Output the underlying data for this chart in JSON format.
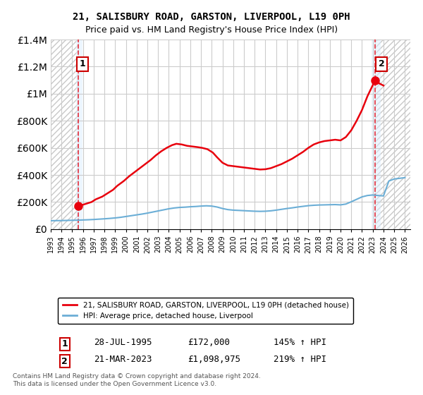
{
  "title": "21, SALISBURY ROAD, GARSTON, LIVERPOOL, L19 0PH",
  "subtitle": "Price paid vs. HM Land Registry's House Price Index (HPI)",
  "legend_label1": "21, SALISBURY ROAD, GARSTON, LIVERPOOL, L19 0PH (detached house)",
  "legend_label2": "HPI: Average price, detached house, Liverpool",
  "annotation1_label": "1",
  "annotation1_date": "28-JUL-1995",
  "annotation1_price": "£172,000",
  "annotation1_hpi": "145% ↑ HPI",
  "annotation2_label": "2",
  "annotation2_date": "21-MAR-2023",
  "annotation2_price": "£1,098,975",
  "annotation2_hpi": "219% ↑ HPI",
  "footer": "Contains HM Land Registry data © Crown copyright and database right 2024.\nThis data is licensed under the Open Government Licence v3.0.",
  "house_color": "#e8000d",
  "hpi_color": "#6baed6",
  "hatch_color": "#d0d0d0",
  "grid_color": "#cccccc",
  "ylim": [
    0,
    1400000
  ],
  "xlim_start": 1993.0,
  "xlim_end": 2026.5,
  "purchase1_x": 1995.57,
  "purchase1_y": 172000,
  "purchase2_x": 2023.22,
  "purchase2_y": 1098975,
  "house_prices_x": [
    1995.57,
    1995.8,
    1996.2,
    1996.8,
    1997.2,
    1997.8,
    1998.3,
    1998.8,
    1999.2,
    1999.8,
    2000.3,
    2000.8,
    2001.3,
    2001.8,
    2002.3,
    2002.8,
    2003.3,
    2003.8,
    2004.3,
    2004.7,
    2005.2,
    2005.7,
    2006.2,
    2006.7,
    2007.1,
    2007.6,
    2008.1,
    2008.5,
    2009.0,
    2009.5,
    2010.0,
    2010.5,
    2011.0,
    2011.5,
    2012.0,
    2012.5,
    2013.0,
    2013.5,
    2014.0,
    2014.5,
    2015.0,
    2015.5,
    2016.0,
    2016.5,
    2017.0,
    2017.5,
    2018.0,
    2018.5,
    2019.0,
    2019.5,
    2020.0,
    2020.5,
    2021.0,
    2021.5,
    2022.0,
    2022.5,
    2023.22,
    2023.5,
    2024.0
  ],
  "house_prices_y": [
    172000,
    175000,
    185000,
    200000,
    220000,
    240000,
    265000,
    290000,
    320000,
    355000,
    390000,
    420000,
    450000,
    480000,
    510000,
    545000,
    575000,
    600000,
    620000,
    630000,
    625000,
    615000,
    610000,
    605000,
    600000,
    590000,
    565000,
    530000,
    490000,
    470000,
    465000,
    460000,
    455000,
    450000,
    445000,
    440000,
    442000,
    450000,
    465000,
    480000,
    500000,
    520000,
    545000,
    570000,
    600000,
    625000,
    640000,
    650000,
    655000,
    660000,
    655000,
    680000,
    730000,
    800000,
    880000,
    980000,
    1098975,
    1080000,
    1060000
  ],
  "hpi_x": [
    1993.0,
    1993.5,
    1994.0,
    1994.5,
    1995.0,
    1995.5,
    1996.0,
    1996.5,
    1997.0,
    1997.5,
    1998.0,
    1998.5,
    1999.0,
    1999.5,
    2000.0,
    2000.5,
    2001.0,
    2001.5,
    2002.0,
    2002.5,
    2003.0,
    2003.5,
    2004.0,
    2004.5,
    2005.0,
    2005.5,
    2006.0,
    2006.5,
    2007.0,
    2007.5,
    2008.0,
    2008.5,
    2009.0,
    2009.5,
    2010.0,
    2010.5,
    2011.0,
    2011.5,
    2012.0,
    2012.5,
    2013.0,
    2013.5,
    2014.0,
    2014.5,
    2015.0,
    2015.5,
    2016.0,
    2016.5,
    2017.0,
    2017.5,
    2018.0,
    2018.5,
    2019.0,
    2019.5,
    2020.0,
    2020.5,
    2021.0,
    2021.5,
    2022.0,
    2022.5,
    2023.0,
    2023.5,
    2024.0,
    2024.5,
    2025.0,
    2025.5,
    2026.0
  ],
  "hpi_y": [
    62000,
    62500,
    63000,
    64000,
    65000,
    66000,
    67500,
    69000,
    71000,
    73500,
    76000,
    79000,
    82500,
    87000,
    93000,
    99000,
    105000,
    111000,
    118000,
    126000,
    134000,
    142000,
    150000,
    156000,
    160000,
    162000,
    165000,
    167000,
    170000,
    172000,
    170000,
    163000,
    152000,
    144000,
    140000,
    138000,
    136000,
    134000,
    132000,
    131000,
    132000,
    135000,
    140000,
    146000,
    152000,
    157000,
    163000,
    168000,
    173000,
    176000,
    178000,
    179000,
    180000,
    181000,
    179000,
    185000,
    202000,
    220000,
    238000,
    248000,
    252000,
    248000,
    245000,
    355000,
    370000,
    375000,
    380000
  ]
}
